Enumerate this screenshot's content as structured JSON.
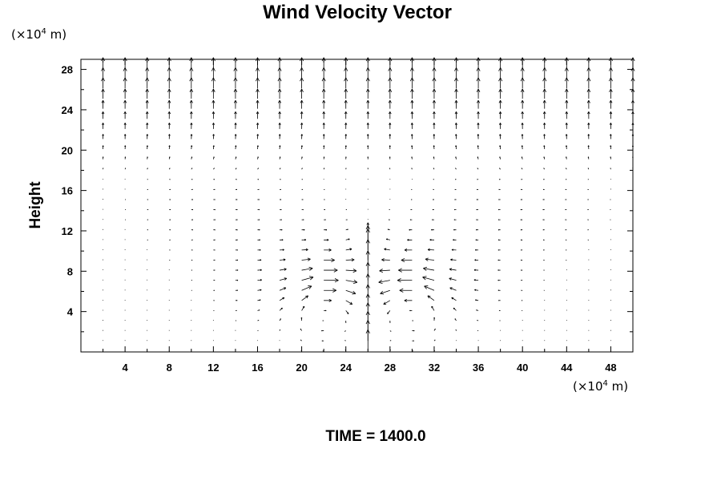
{
  "chart_data": {
    "type": "quiver",
    "title": "Wind Velocity Vector",
    "xlabel": "",
    "ylabel": "Height",
    "x_unit": {
      "prefix": "(×10",
      "exponent": "4",
      "suffix": " m)"
    },
    "y_unit": {
      "prefix": "(×10",
      "exponent": "4",
      "suffix": " m)"
    },
    "xlim": [
      0,
      50
    ],
    "ylim": [
      0,
      29
    ],
    "x_ticks": [
      4,
      8,
      12,
      16,
      20,
      24,
      28,
      32,
      36,
      40,
      44,
      48
    ],
    "y_ticks": [
      4,
      8,
      12,
      16,
      20,
      24,
      28
    ],
    "x_tick_labels": [
      "4",
      "8",
      "12",
      "16",
      "20",
      "24",
      "28",
      "32",
      "36",
      "40",
      "44",
      "48"
    ],
    "y_tick_labels": [
      "4",
      "8",
      "12",
      "16",
      "20",
      "24",
      "28"
    ],
    "grid": false,
    "vector_grid_x": [
      2,
      4,
      6,
      8,
      10,
      12,
      14,
      16,
      18,
      20,
      22,
      24,
      26,
      28,
      30,
      32,
      34,
      36,
      38,
      40,
      42,
      44,
      46,
      48,
      50
    ],
    "vector_grid_y": [
      0,
      1,
      2,
      3,
      4,
      5,
      6,
      7,
      8,
      9,
      10,
      11,
      12,
      13,
      14,
      15,
      16,
      17,
      18,
      19,
      20,
      21,
      22,
      23,
      24,
      25,
      26,
      27,
      28
    ],
    "field_description": "approximate: updraft centered near x=26, y up to 10; twin rolls around x=22 and x=30 at y≈5; broad upward flow above y≈20",
    "updraft_center_x": 26,
    "roll_centers": [
      [
        22,
        5
      ],
      [
        30,
        5
      ]
    ],
    "annotation": "TIME = 1400.0"
  }
}
